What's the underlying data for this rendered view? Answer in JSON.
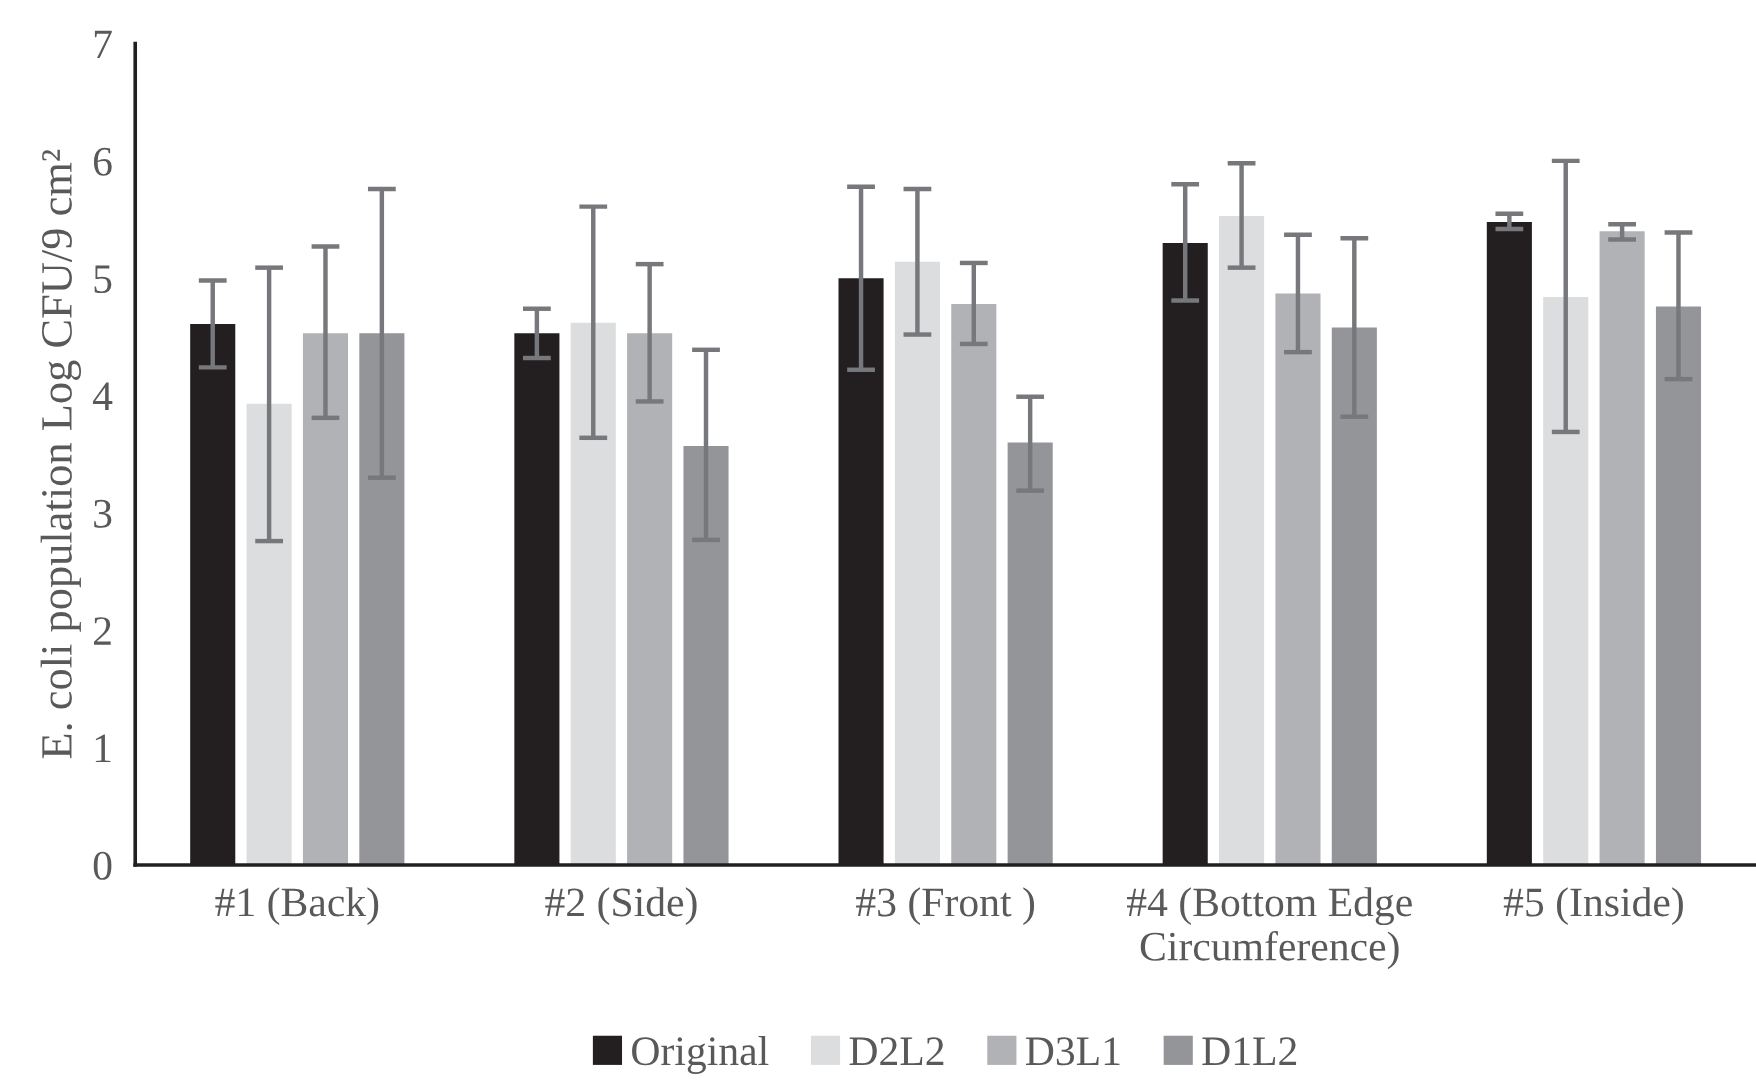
{
  "chart_data": {
    "type": "bar",
    "ylabel": "E. coli population Log CFU/9 cm²",
    "categories": [
      "#1 (Back)",
      "#2 (Side)",
      "#3 (Front )",
      "#4 (Bottom Edge\nCircumference)",
      "#5 (Inside)"
    ],
    "series": [
      {
        "name": "Original",
        "color": "#231f20",
        "values": [
          4.61,
          4.53,
          5.0,
          5.3,
          5.48
        ],
        "errors": [
          [
            4.24,
            4.98
          ],
          [
            4.32,
            4.74
          ],
          [
            4.22,
            5.78
          ],
          [
            4.81,
            5.8
          ],
          [
            5.42,
            5.55
          ]
        ]
      },
      {
        "name": "D2L2",
        "color": "#dcdddf",
        "values": [
          3.93,
          4.62,
          5.14,
          5.53,
          4.84
        ],
        "errors": [
          [
            2.76,
            5.09
          ],
          [
            3.64,
            5.61
          ],
          [
            4.52,
            5.76
          ],
          [
            5.09,
            5.98
          ],
          [
            3.69,
            6.0
          ]
        ]
      },
      {
        "name": "D3L1",
        "color": "#b1b2b5",
        "values": [
          4.53,
          4.53,
          4.78,
          4.87,
          5.4
        ],
        "errors": [
          [
            3.81,
            5.27
          ],
          [
            3.95,
            5.12
          ],
          [
            4.44,
            5.13
          ],
          [
            4.37,
            5.37
          ],
          [
            5.33,
            5.46
          ]
        ]
      },
      {
        "name": "D1L2",
        "color": "#939598",
        "values": [
          4.53,
          3.57,
          3.6,
          4.58,
          4.76
        ],
        "errors": [
          [
            3.3,
            5.76
          ],
          [
            2.77,
            4.39
          ],
          [
            3.19,
            3.99
          ],
          [
            3.82,
            5.34
          ],
          [
            4.14,
            5.39
          ]
        ]
      }
    ],
    "ylim": [
      0,
      7
    ],
    "yticks": [
      0,
      1,
      2,
      3,
      4,
      5,
      6,
      7
    ],
    "grid": false,
    "legend": "bottom"
  }
}
